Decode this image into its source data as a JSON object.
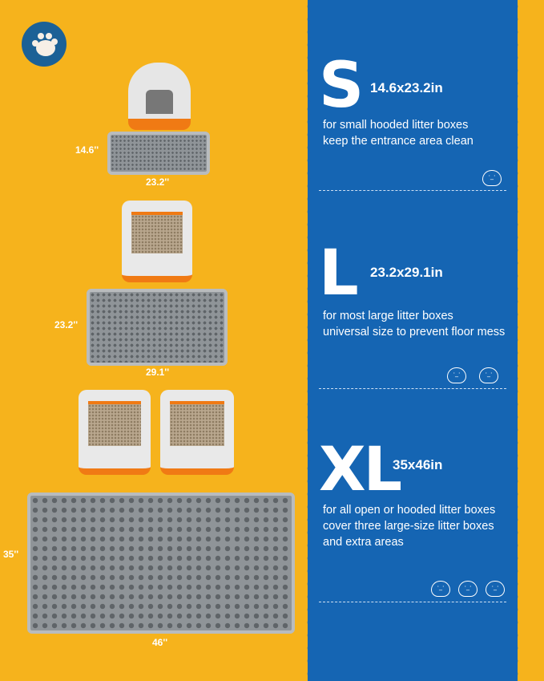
{
  "colors": {
    "background": "#F6B31C",
    "panel": "#1565B3",
    "accent": "#F07A14"
  },
  "badge": {
    "icon": "paw-icon"
  },
  "sizes": [
    {
      "letter": "S",
      "dims": "14.6x23.2in",
      "lines": [
        "for small hooded litter boxes",
        "keep the entrance area clean"
      ],
      "mat_width": "14.6''",
      "mat_length": "23.2''",
      "cats": 1
    },
    {
      "letter": "L",
      "dims": "23.2x29.1in",
      "lines": [
        "for most large litter boxes",
        "universal size to prevent floor mess"
      ],
      "mat_width": "23.2''",
      "mat_length": "29.1''",
      "cats": 2
    },
    {
      "letter": "XL",
      "dims": "35x46in",
      "lines": [
        "for all open or hooded litter boxes",
        "cover three large-size litter boxes",
        "and extra areas"
      ],
      "mat_width": "35''",
      "mat_length": "46''",
      "cats": 3
    }
  ]
}
